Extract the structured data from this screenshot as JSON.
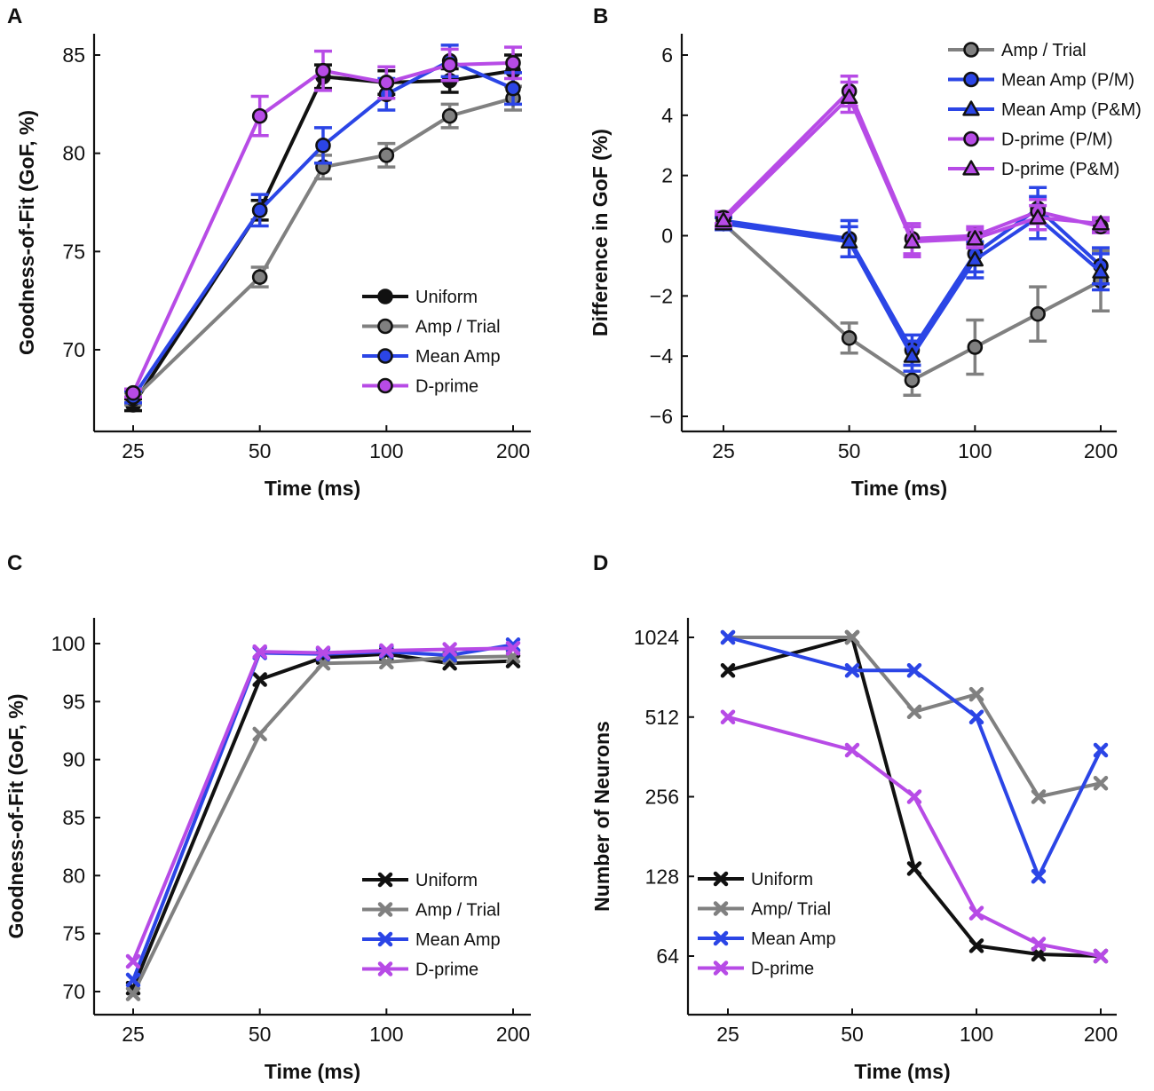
{
  "colors": {
    "black": "#111111",
    "gray": "#808080",
    "blue": "#2b45e6",
    "magenta": "#b74be6"
  },
  "chart_data": [
    {
      "panel": "A",
      "type": "line",
      "xscale": "log2",
      "marker": "circle",
      "errorbars": true,
      "x": [
        25,
        50,
        70.7,
        100,
        141.4,
        200
      ],
      "xticks": [
        25,
        50,
        100,
        200
      ],
      "xtick_labels": [
        "25",
        "50",
        "100",
        "200"
      ],
      "yticks": [
        70,
        75,
        80,
        85
      ],
      "ytick_labels": [
        "70",
        "75",
        "80",
        "85"
      ],
      "ylim": [
        66,
        86
      ],
      "xlabel": "Time (ms)",
      "ylabel": "Goodness-of-Fit (GoF, %)",
      "legend_position": "lower-right",
      "series": [
        {
          "name": "Uniform",
          "color": "black",
          "values": [
            67.2,
            77.1,
            83.9,
            83.6,
            83.7,
            84.2
          ],
          "err": [
            0.3,
            0.5,
            0.6,
            0.6,
            0.6,
            0.8
          ]
        },
        {
          "name": "Amp / Trial",
          "color": "gray",
          "values": [
            67.5,
            73.7,
            79.3,
            79.9,
            81.9,
            82.8
          ],
          "err": [
            0.3,
            0.5,
            0.6,
            0.6,
            0.6,
            0.6
          ]
        },
        {
          "name": "Mean Amp",
          "color": "blue",
          "values": [
            67.6,
            77.1,
            80.4,
            83.0,
            84.7,
            83.3
          ],
          "err": [
            0.3,
            0.8,
            0.9,
            0.8,
            0.8,
            0.8
          ]
        },
        {
          "name": "D-prime",
          "color": "magenta",
          "values": [
            67.8,
            81.9,
            84.2,
            83.6,
            84.5,
            84.6
          ],
          "err": [
            0.2,
            1.0,
            1.0,
            0.8,
            0.8,
            0.8
          ]
        }
      ]
    },
    {
      "panel": "B",
      "type": "line",
      "xscale": "log2",
      "errorbars": true,
      "x": [
        25,
        50,
        70.7,
        100,
        141.4,
        200
      ],
      "xticks": [
        25,
        50,
        100,
        200
      ],
      "xtick_labels": [
        "25",
        "50",
        "100",
        "200"
      ],
      "yticks": [
        -6,
        -4,
        -2,
        0,
        2,
        4,
        6
      ],
      "ytick_labels": [
        "−6",
        "−4",
        "−2",
        "0",
        "2",
        "4",
        "6"
      ],
      "ylim": [
        -6.5,
        6.5
      ],
      "xlabel": "Time (ms)",
      "ylabel": "Difference in GoF (%)",
      "legend_position": "top-right",
      "series": [
        {
          "name": "Amp / Trial",
          "color": "gray",
          "marker": "circle",
          "values": [
            0.4,
            -3.4,
            -4.8,
            -3.7,
            -2.6,
            -1.5
          ],
          "err": [
            0.2,
            0.5,
            0.5,
            0.9,
            0.9,
            1.0
          ]
        },
        {
          "name": "Mean Amp (P/M)",
          "color": "blue",
          "marker": "circle",
          "values": [
            0.5,
            -0.1,
            -3.8,
            -0.6,
            0.9,
            -1.0
          ],
          "err": [
            0.2,
            0.6,
            0.5,
            0.6,
            0.7,
            0.6
          ]
        },
        {
          "name": "Mean Amp (P&M)",
          "color": "blue",
          "marker": "triangle",
          "values": [
            0.4,
            -0.2,
            -4.0,
            -0.8,
            0.6,
            -1.2
          ],
          "err": [
            0.2,
            0.5,
            0.5,
            0.6,
            0.7,
            0.6
          ]
        },
        {
          "name": "D-prime (P/M)",
          "color": "magenta",
          "marker": "circle",
          "values": [
            0.6,
            4.8,
            -0.1,
            0.0,
            0.8,
            0.3
          ],
          "err": [
            0.2,
            0.5,
            0.5,
            0.3,
            0.4,
            0.2
          ]
        },
        {
          "name": "D-prime (P&M)",
          "color": "magenta",
          "marker": "triangle",
          "values": [
            0.5,
            4.6,
            -0.2,
            -0.1,
            0.6,
            0.4
          ],
          "err": [
            0.2,
            0.5,
            0.5,
            0.3,
            0.4,
            0.2
          ]
        }
      ]
    },
    {
      "panel": "C",
      "type": "line",
      "xscale": "log2",
      "marker": "x",
      "errorbars": false,
      "x": [
        25,
        50,
        70.7,
        100,
        141.4,
        200
      ],
      "xticks": [
        25,
        50,
        100,
        200
      ],
      "xtick_labels": [
        "25",
        "50",
        "100",
        "200"
      ],
      "yticks": [
        70,
        75,
        80,
        85,
        90,
        95,
        100
      ],
      "ytick_labels": [
        "70",
        "75",
        "80",
        "85",
        "90",
        "95",
        "100"
      ],
      "ylim": [
        69,
        101.5
      ],
      "xlabel": "Time (ms)",
      "ylabel": "Goodness-of-Fit (GoF, %)",
      "legend_position": "lower-right",
      "series": [
        {
          "name": "Uniform",
          "color": "black",
          "values": [
            70.3,
            96.9,
            98.8,
            99.1,
            98.3,
            98.5
          ]
        },
        {
          "name": "Amp / Trial",
          "color": "gray",
          "values": [
            69.8,
            92.2,
            98.3,
            98.4,
            98.8,
            98.9
          ]
        },
        {
          "name": "Mean Amp",
          "color": "blue",
          "values": [
            71.0,
            99.2,
            99.1,
            99.3,
            99.0,
            99.9
          ]
        },
        {
          "name": "D-prime",
          "color": "magenta",
          "values": [
            72.6,
            99.3,
            99.2,
            99.4,
            99.5,
            99.6
          ]
        }
      ]
    },
    {
      "panel": "D",
      "type": "line",
      "xscale": "log2",
      "yscale": "log2",
      "marker": "x",
      "errorbars": false,
      "x": [
        25,
        50,
        70.7,
        100,
        141.4,
        200
      ],
      "xticks": [
        25,
        50,
        100,
        200
      ],
      "xtick_labels": [
        "25",
        "50",
        "100",
        "200"
      ],
      "yticks": [
        64,
        128,
        256,
        512,
        1024
      ],
      "ytick_labels": [
        "64",
        "128",
        "256",
        "512",
        "1024"
      ],
      "ylim": [
        45,
        1200
      ],
      "xlabel": "Time (ms)",
      "ylabel": "Number of Neurons",
      "legend_position": "lower-left",
      "series": [
        {
          "name": "Uniform",
          "color": "black",
          "values": [
            768,
            1024,
            137,
            70,
            65,
            64
          ]
        },
        {
          "name": "Amp/ Trial",
          "color": "gray",
          "values": [
            1024,
            1024,
            536,
            624,
            256,
            288
          ]
        },
        {
          "name": "Mean Amp",
          "color": "blue",
          "values": [
            1024,
            768,
            768,
            512,
            128,
            384
          ]
        },
        {
          "name": "D-prime",
          "color": "magenta",
          "values": [
            512,
            384,
            256,
            93,
            71,
            64
          ]
        }
      ]
    }
  ]
}
